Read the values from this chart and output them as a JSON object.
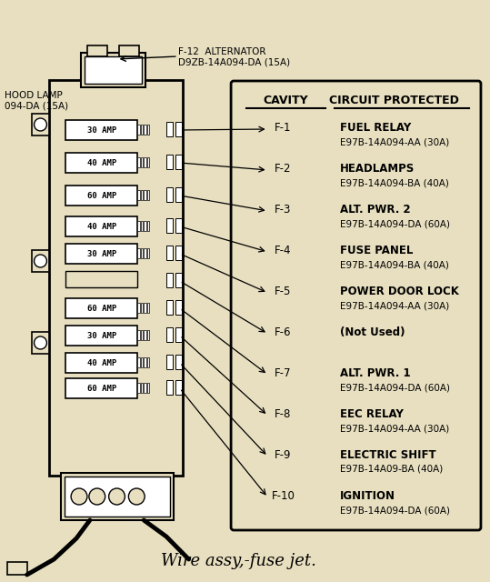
{
  "bg_color": "#e8dfc0",
  "title": "Wire assy,-fuse jet.",
  "hood_lamp_text": "HOOD LAMP\n094-DA (15A)",
  "alternator_text": "F-12  ALTERNATOR\nD9ZB-14A094-DA (15A)",
  "table_header_cavity": "CAVITY",
  "table_header_circuit": "CIRCUIT PROTECTED",
  "fuses": [
    {
      "cavity": "F-1",
      "label": "30 AMP",
      "circuit": "FUEL RELAY",
      "part": "E97B-14A094-AA (30A)"
    },
    {
      "cavity": "F-2",
      "label": "40 AMP",
      "circuit": "HEADLAMPS",
      "part": "E97B-14A094-BA (40A)"
    },
    {
      "cavity": "F-3",
      "label": "60 AMP",
      "circuit": "ALT. PWR. 2",
      "part": "E97B-14A094-DA (60A)"
    },
    {
      "cavity": "F-4",
      "label": "40 AMP",
      "circuit": "FUSE PANEL",
      "part": "E97B-14A094-BA (40A)"
    },
    {
      "cavity": "F-5",
      "label": "30 AMP",
      "circuit": "POWER DOOR LOCK",
      "part": "E97B-14A094-AA (30A)"
    },
    {
      "cavity": "F-6",
      "label": "",
      "circuit": "(Not Used)",
      "part": ""
    },
    {
      "cavity": "F-7",
      "label": "60 AMP",
      "circuit": "ALT. PWR. 1",
      "part": "E97B-14A094-DA (60A)"
    },
    {
      "cavity": "F-8",
      "label": "30 AMP",
      "circuit": "EEC RELAY",
      "part": "E97B-14A094-AA (30A)"
    },
    {
      "cavity": "F-9",
      "label": "40 AMP",
      "circuit": "ELECTRIC SHIFT",
      "part": "E97B-14A09-BA (40A)"
    },
    {
      "cavity": "F-10",
      "label": "60 AMP",
      "circuit": "IGNITION",
      "part": "E97B-14A094-DA (60A)"
    }
  ]
}
